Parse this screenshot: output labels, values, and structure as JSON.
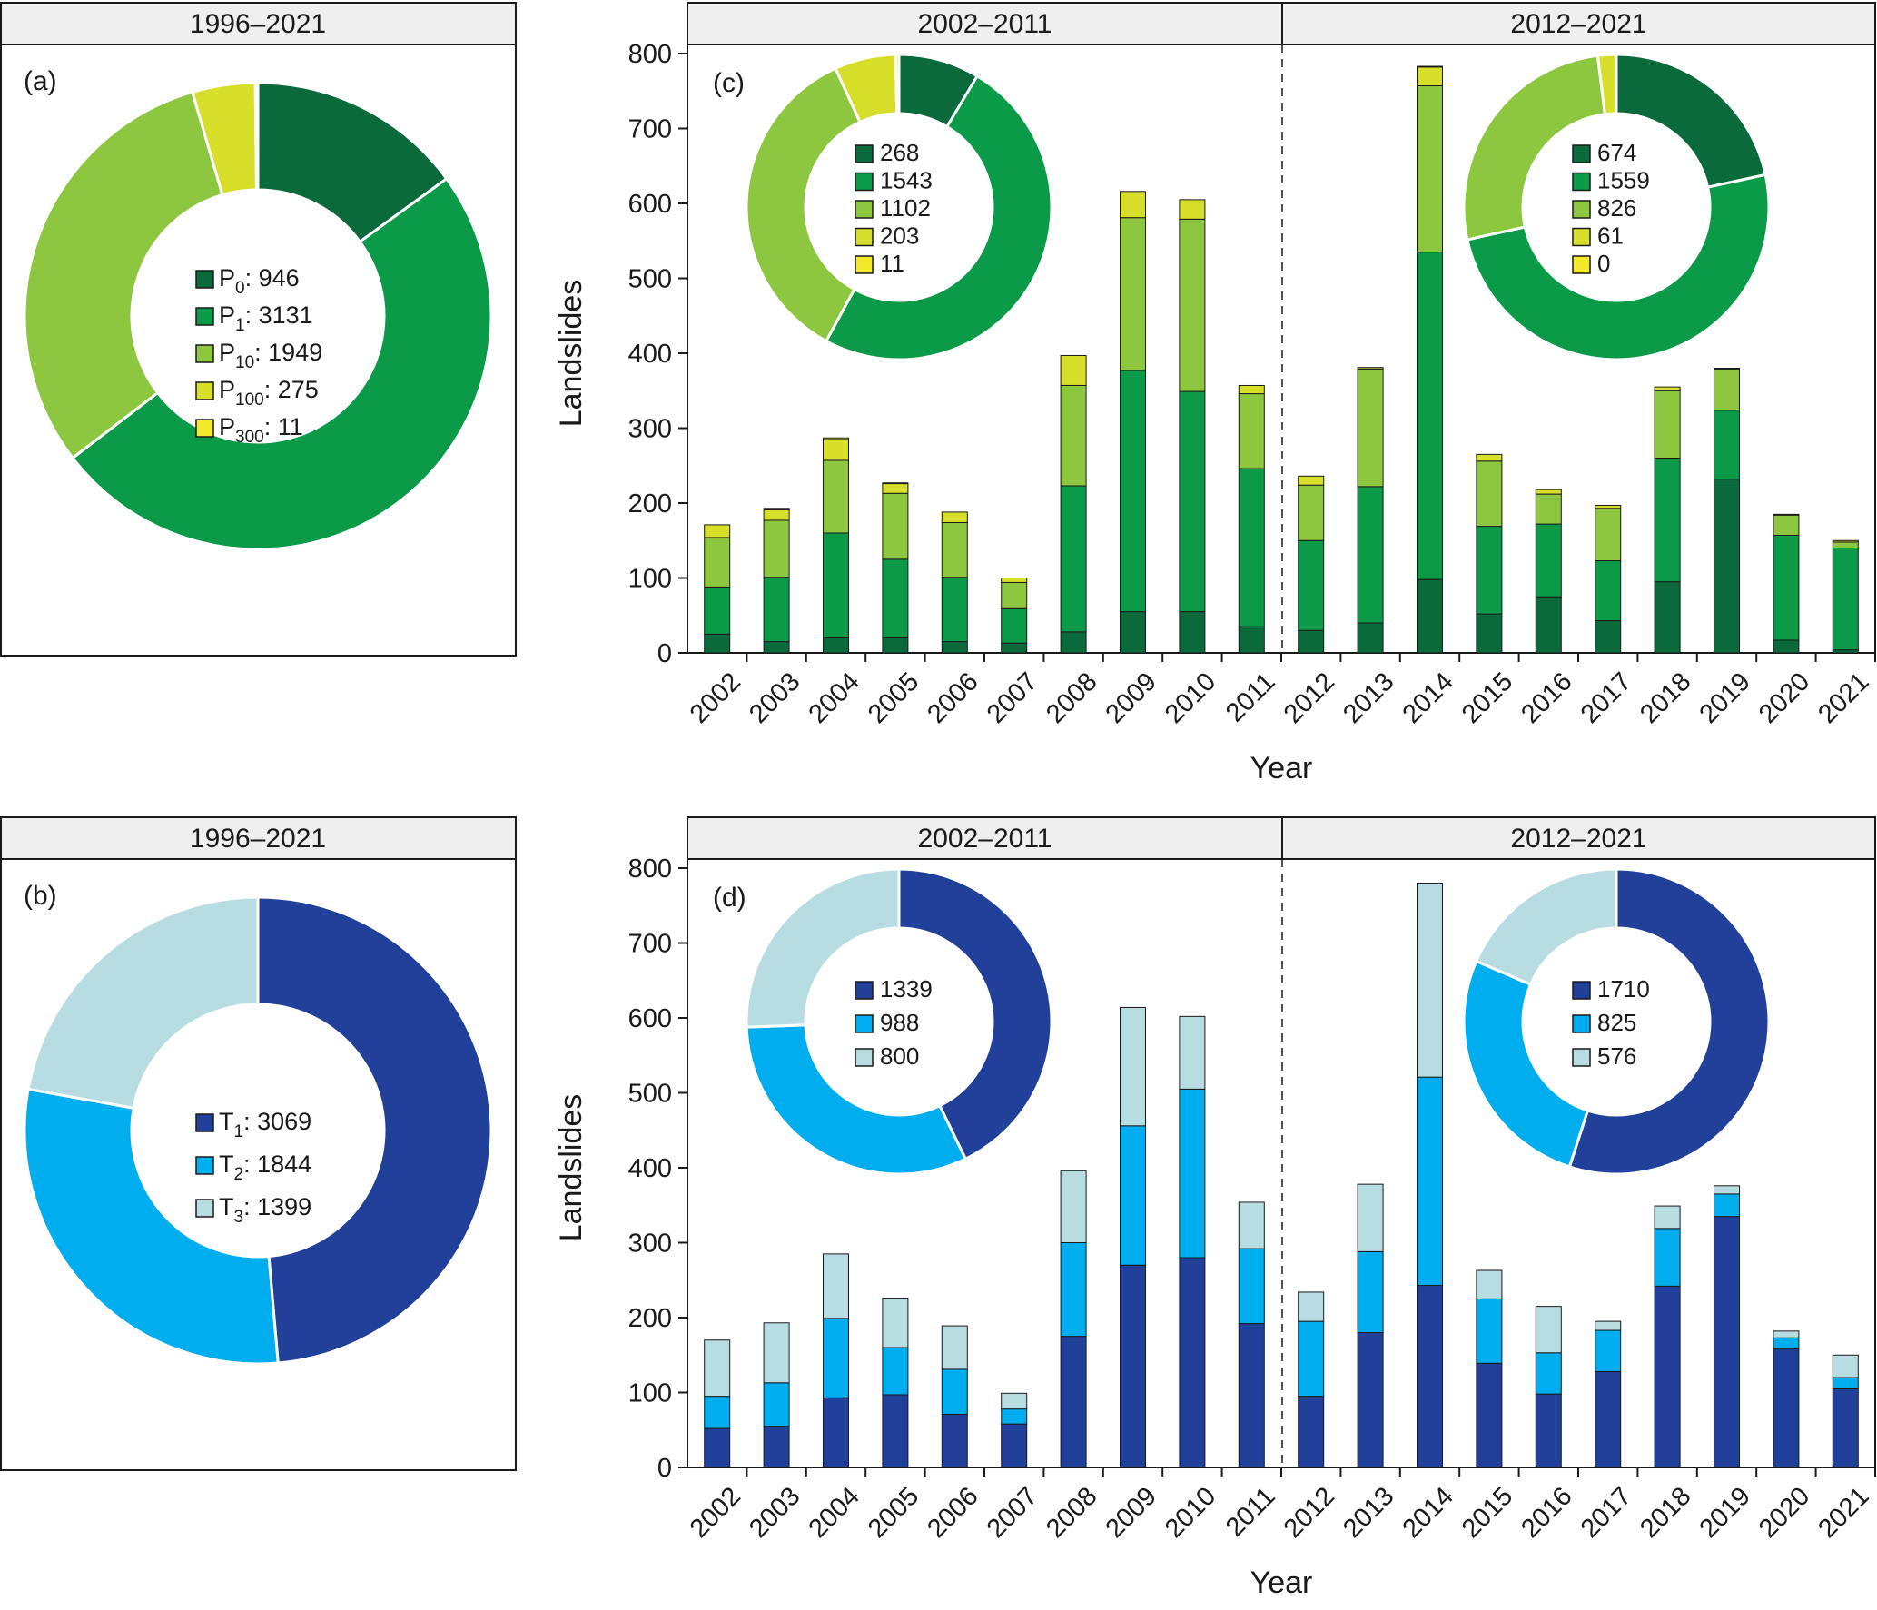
{
  "colors": {
    "P0": "#0b6a3c",
    "P1": "#0a9a48",
    "P10": "#8dc63f",
    "P100": "#d8df2a",
    "P300": "#f2ea2a",
    "T1": "#21409a",
    "T2": "#00aeef",
    "T3": "#b7dde3",
    "header_bg": "#efefef"
  },
  "chart_data": [
    {
      "id": "a",
      "type": "pie",
      "panel_label": "(a)",
      "header": "1996–2021",
      "categories": [
        "P0",
        "P1",
        "P10",
        "P100",
        "P300"
      ],
      "legend": [
        {
          "key": "P0",
          "base": "P",
          "sub": "0",
          "value_text": ": 946"
        },
        {
          "key": "P1",
          "base": "P",
          "sub": "1",
          "value_text": ": 3131"
        },
        {
          "key": "P10",
          "base": "P",
          "sub": "10",
          "value_text": ": 1949"
        },
        {
          "key": "P100",
          "base": "P",
          "sub": "100",
          "value_text": ": 275"
        },
        {
          "key": "P300",
          "base": "P",
          "sub": "300",
          "value_text": ": 11"
        }
      ],
      "values": [
        946,
        3131,
        1949,
        275,
        11
      ]
    },
    {
      "id": "b",
      "type": "pie",
      "panel_label": "(b)",
      "header": "1996–2021",
      "categories": [
        "T1",
        "T2",
        "T3"
      ],
      "legend": [
        {
          "key": "T1",
          "base": "T",
          "sub": "1",
          "value_text": ": 3069"
        },
        {
          "key": "T2",
          "base": "T",
          "sub": "2",
          "value_text": ": 1844"
        },
        {
          "key": "T3",
          "base": "T",
          "sub": "3",
          "value_text": ": 1399"
        }
      ],
      "values": [
        3069,
        1844,
        1399
      ]
    },
    {
      "id": "c",
      "type": "bar",
      "stacked": true,
      "panel_label": "(c)",
      "headers": [
        "2002–2011",
        "2012–2021"
      ],
      "xlabel": "Year",
      "ylabel": "Landslides",
      "ylim": [
        0,
        800
      ],
      "yticks": [
        0,
        100,
        200,
        300,
        400,
        500,
        600,
        700,
        800
      ],
      "categories": [
        "2002",
        "2003",
        "2004",
        "2005",
        "2006",
        "2007",
        "2008",
        "2009",
        "2010",
        "2011",
        "2012",
        "2013",
        "2014",
        "2015",
        "2016",
        "2017",
        "2018",
        "2019",
        "2020",
        "2021"
      ],
      "series": [
        {
          "name": "P0",
          "values": [
            25,
            15,
            20,
            20,
            15,
            13,
            28,
            55,
            55,
            35,
            30,
            40,
            98,
            52,
            75,
            43,
            95,
            232,
            17,
            4
          ]
        },
        {
          "name": "P1",
          "values": [
            63,
            86,
            140,
            105,
            86,
            46,
            195,
            322,
            294,
            211,
            120,
            182,
            437,
            117,
            97,
            80,
            165,
            92,
            140,
            136
          ]
        },
        {
          "name": "P10",
          "values": [
            66,
            76,
            97,
            88,
            73,
            35,
            134,
            204,
            230,
            100,
            74,
            157,
            222,
            87,
            40,
            70,
            90,
            55,
            27,
            8
          ]
        },
        {
          "name": "P100",
          "values": [
            17,
            14,
            28,
            13,
            14,
            6,
            40,
            35,
            26,
            11,
            12,
            2,
            25,
            9,
            6,
            4,
            5,
            1,
            1,
            2
          ]
        },
        {
          "name": "P300",
          "values": [
            0,
            2,
            2,
            1,
            0,
            0,
            0,
            0,
            0,
            0,
            0,
            0,
            1,
            0,
            0,
            0,
            0,
            0,
            0,
            0
          ]
        }
      ],
      "insets": [
        {
          "period": "2002–2011",
          "categories": [
            "P0",
            "P1",
            "P10",
            "P100",
            "P300"
          ],
          "values": [
            268,
            1543,
            1102,
            203,
            11
          ]
        },
        {
          "period": "2012–2021",
          "categories": [
            "P0",
            "P1",
            "P10",
            "P100",
            "P300"
          ],
          "values": [
            674,
            1559,
            826,
            61,
            0
          ]
        }
      ]
    },
    {
      "id": "d",
      "type": "bar",
      "stacked": true,
      "panel_label": "(d)",
      "headers": [
        "2002–2011",
        "2012–2021"
      ],
      "xlabel": "Year",
      "ylabel": "Landslides",
      "ylim": [
        0,
        800
      ],
      "yticks": [
        0,
        100,
        200,
        300,
        400,
        500,
        600,
        700,
        800
      ],
      "categories": [
        "2002",
        "2003",
        "2004",
        "2005",
        "2006",
        "2007",
        "2008",
        "2009",
        "2010",
        "2011",
        "2012",
        "2013",
        "2014",
        "2015",
        "2016",
        "2017",
        "2018",
        "2019",
        "2020",
        "2021"
      ],
      "series": [
        {
          "name": "T1",
          "values": [
            52,
            55,
            93,
            97,
            71,
            58,
            175,
            270,
            280,
            192,
            95,
            180,
            243,
            139,
            98,
            128,
            242,
            335,
            158,
            105
          ]
        },
        {
          "name": "T2",
          "values": [
            43,
            58,
            106,
            63,
            60,
            20,
            125,
            186,
            225,
            100,
            100,
            108,
            278,
            86,
            55,
            55,
            77,
            30,
            15,
            15
          ]
        },
        {
          "name": "T3",
          "values": [
            75,
            80,
            86,
            66,
            58,
            21,
            96,
            158,
            97,
            62,
            39,
            90,
            259,
            38,
            62,
            12,
            30,
            11,
            9,
            30
          ]
        }
      ],
      "insets": [
        {
          "period": "2002–2011",
          "categories": [
            "T1",
            "T2",
            "T3"
          ],
          "values": [
            1339,
            988,
            800
          ]
        },
        {
          "period": "2012–2021",
          "categories": [
            "T1",
            "T2",
            "T3"
          ],
          "values": [
            1710,
            825,
            576
          ]
        }
      ]
    }
  ]
}
